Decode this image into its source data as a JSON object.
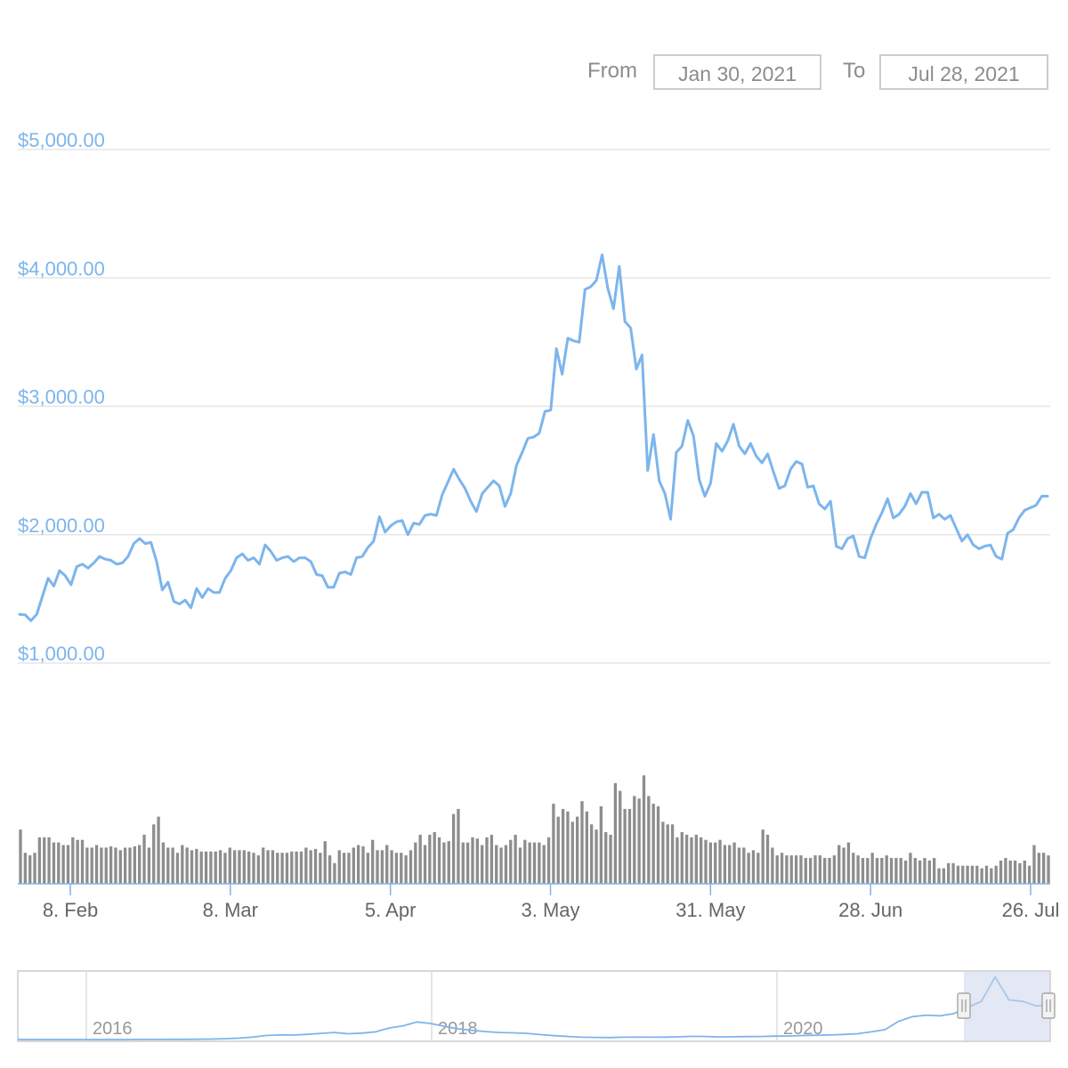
{
  "range_selector": {
    "from_label": "From",
    "from_value": "Jan 30, 2021",
    "to_label": "To",
    "to_value": "Jul 28, 2021"
  },
  "colors": {
    "price_line": "#7cb5ec",
    "volume_bar": "#8d8d8d",
    "grid": "#e6e6e6",
    "axis_label": "#7cb5ec",
    "navigator_mask": "#ccd6eb"
  },
  "chart_data": [
    {
      "type": "line",
      "title": "",
      "ylabel": "",
      "y_tick_labels": [
        "$1,000.00",
        "$2,000.00",
        "$3,000.00",
        "$4,000.00",
        "$5,000.00"
      ],
      "ylim": [
        1000,
        5000
      ],
      "x_tick_labels": [
        "8. Feb",
        "8. Mar",
        "5. Apr",
        "3. May",
        "31. May",
        "28. Jun",
        "26. Jul"
      ],
      "grid": true,
      "series": [
        {
          "values": [
            1380,
            1375,
            1330,
            1380,
            1520,
            1660,
            1600,
            1720,
            1680,
            1610,
            1750,
            1770,
            1740,
            1780,
            1830,
            1810,
            1800,
            1770,
            1780,
            1830,
            1930,
            1970,
            1930,
            1940,
            1790,
            1570,
            1630,
            1480,
            1460,
            1490,
            1430,
            1580,
            1510,
            1580,
            1550,
            1550,
            1660,
            1720,
            1820,
            1850,
            1800,
            1820,
            1770,
            1920,
            1870,
            1800,
            1820,
            1830,
            1790,
            1820,
            1820,
            1790,
            1690,
            1680,
            1590,
            1590,
            1700,
            1710,
            1690,
            1820,
            1830,
            1900,
            1950,
            2140,
            2020,
            2070,
            2100,
            2110,
            2000,
            2090,
            2080,
            2150,
            2160,
            2150,
            2310,
            2410,
            2510,
            2430,
            2360,
            2260,
            2180,
            2320,
            2370,
            2420,
            2380,
            2220,
            2320,
            2540,
            2640,
            2750,
            2760,
            2790,
            2960,
            2970,
            3450,
            3250,
            3530,
            3510,
            3500,
            3910,
            3930,
            3980,
            4180,
            3920,
            3760,
            4090,
            3660,
            3610,
            3290,
            3400,
            2500,
            2780,
            2420,
            2320,
            2120,
            2640,
            2690,
            2890,
            2770,
            2430,
            2300,
            2400,
            2710,
            2650,
            2730,
            2860,
            2690,
            2630,
            2710,
            2610,
            2560,
            2630,
            2490,
            2360,
            2380,
            2510,
            2570,
            2550,
            2370,
            2380,
            2240,
            2200,
            2260,
            1910,
            1890,
            1970,
            1990,
            1830,
            1820,
            1970,
            2080,
            2170,
            2280,
            2130,
            2160,
            2220,
            2320,
            2240,
            2330,
            2330,
            2130,
            2160,
            2120,
            2150,
            2050,
            1950,
            2000,
            1920,
            1890,
            1910,
            1920,
            1830,
            1810,
            2010,
            2040,
            2130,
            2190,
            2210,
            2230,
            2300,
            2300
          ]
        }
      ]
    },
    {
      "type": "bar",
      "title": "",
      "xlabel": "",
      "ylabel": "",
      "values": [
        0.42,
        0.24,
        0.22,
        0.24,
        0.36,
        0.36,
        0.36,
        0.32,
        0.32,
        0.3,
        0.3,
        0.36,
        0.34,
        0.34,
        0.28,
        0.28,
        0.3,
        0.28,
        0.28,
        0.29,
        0.28,
        0.26,
        0.28,
        0.28,
        0.29,
        0.3,
        0.38,
        0.28,
        0.46,
        0.52,
        0.32,
        0.28,
        0.28,
        0.24,
        0.3,
        0.28,
        0.26,
        0.27,
        0.25,
        0.25,
        0.25,
        0.25,
        0.26,
        0.24,
        0.28,
        0.26,
        0.26,
        0.26,
        0.25,
        0.24,
        0.22,
        0.28,
        0.26,
        0.26,
        0.24,
        0.24,
        0.24,
        0.25,
        0.25,
        0.25,
        0.28,
        0.26,
        0.27,
        0.24,
        0.33,
        0.22,
        0.16,
        0.26,
        0.24,
        0.24,
        0.28,
        0.3,
        0.29,
        0.24,
        0.34,
        0.26,
        0.26,
        0.3,
        0.26,
        0.24,
        0.24,
        0.22,
        0.26,
        0.32,
        0.38,
        0.3,
        0.38,
        0.4,
        0.36,
        0.32,
        0.33,
        0.54,
        0.58,
        0.32,
        0.32,
        0.36,
        0.35,
        0.3,
        0.36,
        0.38,
        0.3,
        0.28,
        0.3,
        0.34,
        0.38,
        0.28,
        0.34,
        0.32,
        0.32,
        0.32,
        0.3,
        0.36,
        0.62,
        0.52,
        0.58,
        0.56,
        0.48,
        0.52,
        0.64,
        0.56,
        0.46,
        0.42,
        0.6,
        0.4,
        0.38,
        0.78,
        0.72,
        0.58,
        0.58,
        0.68,
        0.66,
        0.84,
        0.68,
        0.62,
        0.6,
        0.48,
        0.46,
        0.46,
        0.36,
        0.4,
        0.38,
        0.36,
        0.38,
        0.36,
        0.34,
        0.32,
        0.32,
        0.34,
        0.3,
        0.3,
        0.32,
        0.28,
        0.28,
        0.24,
        0.26,
        0.24,
        0.42,
        0.38,
        0.28,
        0.22,
        0.24,
        0.22,
        0.22,
        0.22,
        0.22,
        0.2,
        0.2,
        0.22,
        0.22,
        0.2,
        0.2,
        0.22,
        0.3,
        0.28,
        0.32,
        0.24,
        0.22,
        0.2,
        0.2,
        0.24,
        0.2,
        0.2,
        0.22,
        0.2,
        0.2,
        0.2,
        0.18,
        0.24,
        0.2,
        0.18,
        0.2,
        0.18,
        0.2,
        0.12,
        0.12,
        0.16,
        0.16,
        0.14,
        0.14,
        0.14,
        0.14,
        0.14,
        0.12,
        0.14,
        0.12,
        0.14,
        0.18,
        0.2,
        0.18,
        0.18,
        0.16,
        0.18,
        0.14,
        0.3,
        0.24,
        0.24,
        0.22
      ]
    },
    {
      "type": "line",
      "title": "",
      "x_tick_labels": [
        "2016",
        "2018",
        "2020"
      ],
      "series": [
        {
          "values": [
            1,
            1,
            1,
            1,
            1,
            2,
            2,
            2,
            2,
            3,
            5,
            9,
            14,
            20,
            30,
            50,
            90,
            150,
            260,
            300,
            290,
            340,
            400,
            460,
            380,
            420,
            500,
            760,
            900,
            1150,
            1050,
            860,
            700,
            600,
            520,
            460,
            440,
            400,
            320,
            250,
            200,
            150,
            140,
            130,
            150,
            160,
            150,
            160,
            175,
            210,
            200,
            170,
            180,
            190,
            200,
            220,
            230,
            260,
            280,
            300,
            330,
            380,
            500,
            650,
            1200,
            1500,
            1600,
            1550,
            1700,
            2100,
            2500,
            4100,
            2600,
            2500,
            2200,
            2300
          ]
        }
      ],
      "selected_range_label": "Jan 30, 2021 – Jul 28, 2021"
    }
  ]
}
